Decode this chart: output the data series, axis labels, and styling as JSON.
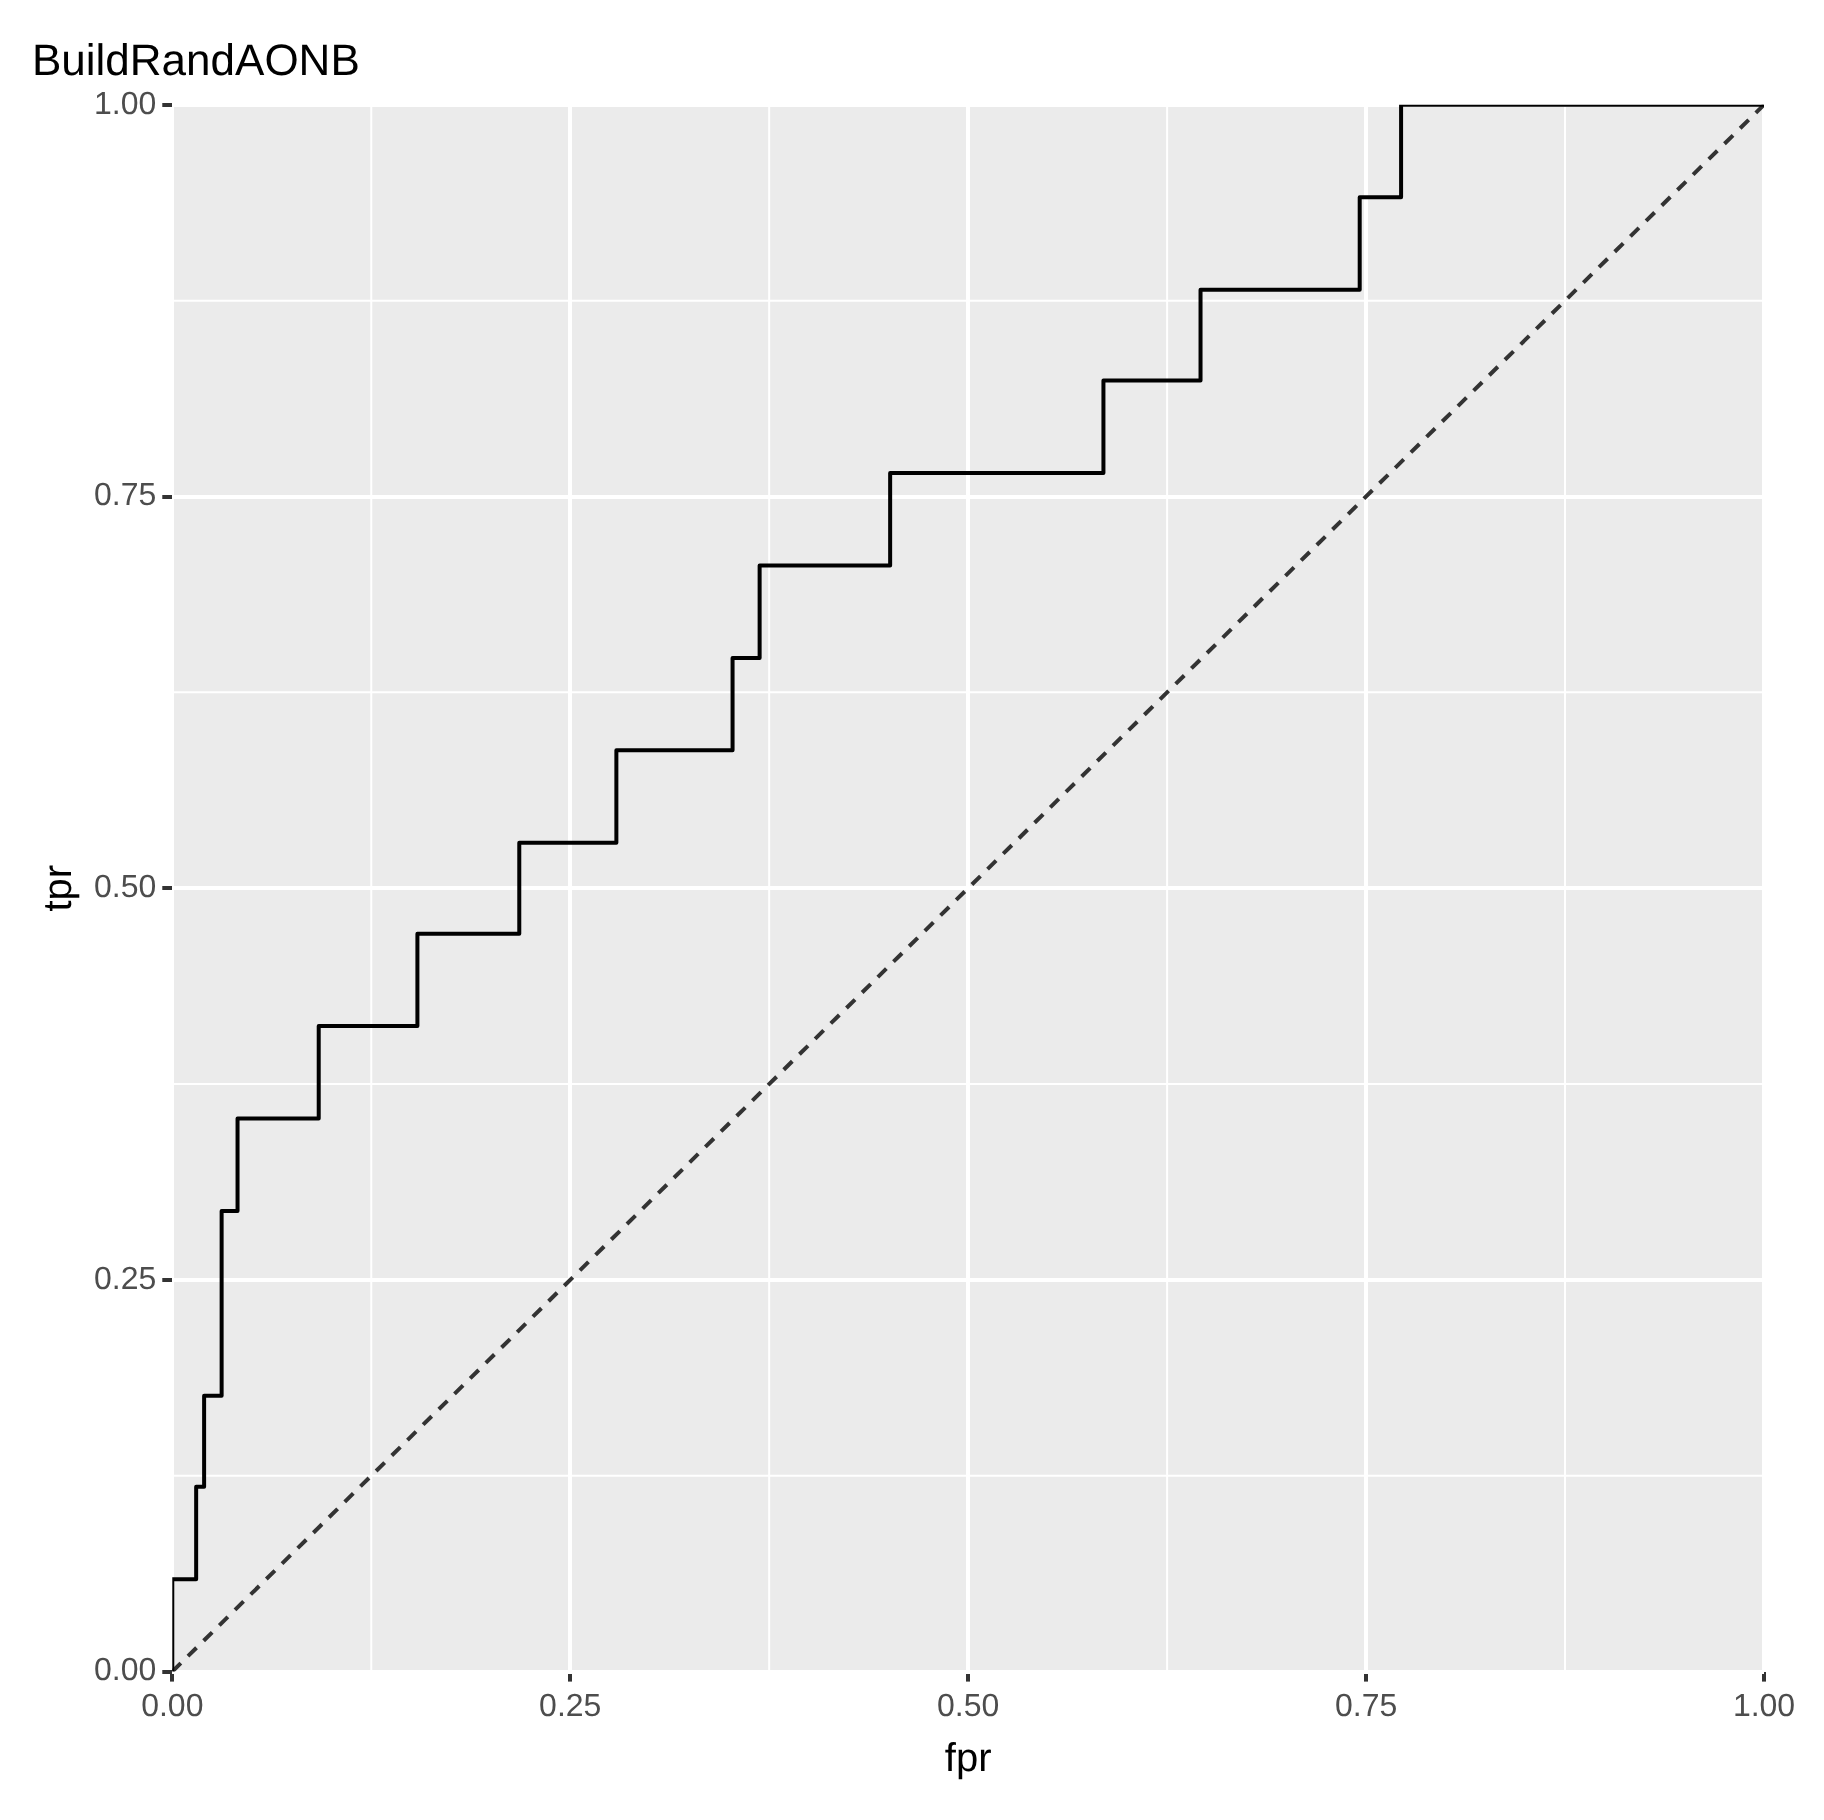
{
  "chart_data": {
    "type": "step",
    "title": "BuildRandAONB",
    "xlabel": "fpr",
    "ylabel": "tpr",
    "xlim": [
      0,
      1
    ],
    "ylim": [
      0,
      1
    ],
    "xticks": [
      {
        "value": 0,
        "label": "0.00"
      },
      {
        "value": 0.25,
        "label": "0.25"
      },
      {
        "value": 0.5,
        "label": "0.50"
      },
      {
        "value": 0.75,
        "label": "0.75"
      },
      {
        "value": 1,
        "label": "1.00"
      }
    ],
    "yticks": [
      {
        "value": 0,
        "label": "0.00"
      },
      {
        "value": 0.25,
        "label": "0.25"
      },
      {
        "value": 0.5,
        "label": "0.50"
      },
      {
        "value": 0.75,
        "label": "0.75"
      },
      {
        "value": 1,
        "label": "1.00"
      }
    ],
    "grid": true,
    "marker": "none",
    "series": [
      {
        "type": "step",
        "color": "#000000",
        "line_style": "solid",
        "x": [
          0,
          0,
          0.015,
          0.02,
          0.031,
          0.041,
          0.092,
          0.154,
          0.218,
          0.279,
          0.352,
          0.369,
          0.451,
          0.585,
          0.646,
          0.746,
          0.772,
          1
        ],
        "values": [
          0,
          0.059,
          0.118,
          0.176,
          0.294,
          0.353,
          0.412,
          0.471,
          0.529,
          0.588,
          0.647,
          0.706,
          0.765,
          0.824,
          0.882,
          0.941,
          1,
          1
        ]
      },
      {
        "type": "line",
        "color": "#333333",
        "line_style": "dashed",
        "x": [
          0,
          1
        ],
        "values": [
          0,
          1
        ]
      }
    ]
  }
}
